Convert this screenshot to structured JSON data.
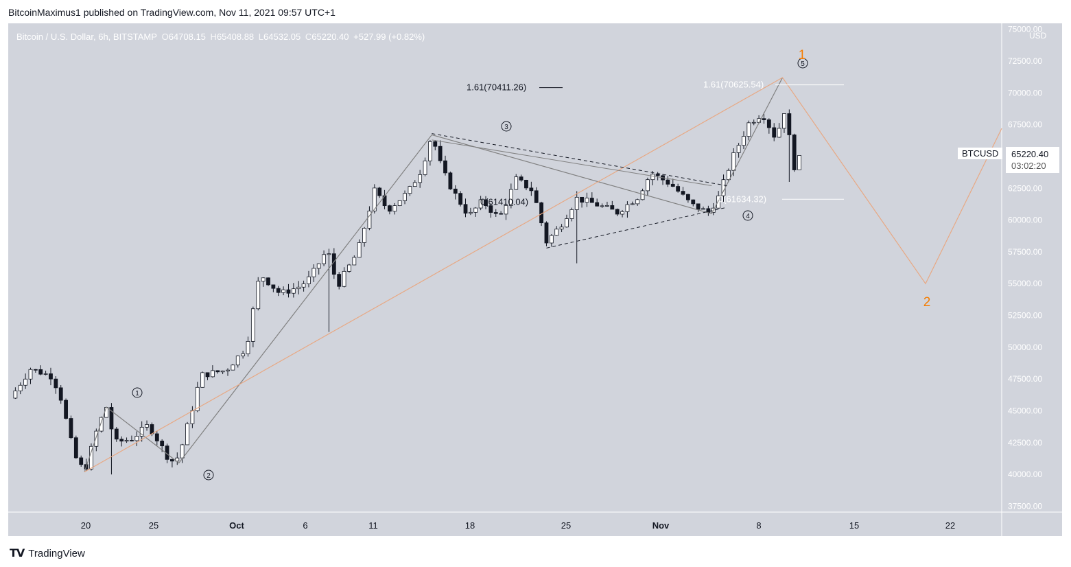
{
  "header": {
    "publisher_line": "BitcoinMaximus1 published on TradingView.com, Nov 11, 2021 09:57 UTC+1"
  },
  "legend": {
    "symbol": "Bitcoin / U.S. Dollar, 6h, BITSTAMP",
    "o_key": "O",
    "o_val": "64708.15",
    "h_key": "H",
    "h_val": "65408.88",
    "l_key": "L",
    "l_val": "64532.05",
    "c_key": "C",
    "c_val": "65220.40",
    "change": "+527.99 (+0.82%)"
  },
  "price_tag": {
    "label": "BTCUSD",
    "price": "65220.40",
    "countdown": "03:02:20"
  },
  "footer": {
    "brand": "TradingView"
  },
  "colors": {
    "background": "#d1d4dc",
    "up_candle": "#ffffff",
    "down_candle": "#131722",
    "orange": "#f57c00",
    "wave_line": "#808080"
  },
  "chart_data": {
    "type": "candlestick",
    "currency_label": "USD",
    "x_axis_labels": [
      "20",
      "25",
      "Oct",
      "6",
      "11",
      "18",
      "25",
      "Nov",
      "8",
      "15",
      "22"
    ],
    "y_axis_labels": [
      "37500.00",
      "40000.00",
      "42500.00",
      "45000.00",
      "47500.00",
      "50000.00",
      "52500.00",
      "55000.00",
      "57500.00",
      "60000.00",
      "62500.00",
      "65000.00",
      "67500.00",
      "70000.00",
      "72500.00",
      "75000.00"
    ],
    "ylim": [
      37500,
      75000
    ],
    "key_prices": [
      46000,
      48300,
      47500,
      40200,
      45300,
      40900,
      47800,
      54500,
      57500,
      61500,
      66700,
      60300,
      63000,
      58000,
      62000,
      60500,
      68500,
      66000,
      69000,
      63000,
      65220
    ],
    "wave_labels": [
      {
        "label": "1",
        "price": 46000
      },
      {
        "label": "2",
        "price": 40900
      },
      {
        "label": "3",
        "price": 66700
      },
      {
        "label": "4",
        "price": 60500
      },
      {
        "label": "5",
        "price": 71200
      }
    ],
    "major_wave_labels": [
      {
        "label": "1",
        "price": 71200
      },
      {
        "label": "2",
        "price": 55000
      }
    ],
    "fib_annotations": [
      {
        "label": "1.61(70411.26)",
        "price": 70411.26
      },
      {
        "label": "1.61(70625.54)",
        "price": 70625.54
      },
      {
        "label": "0(61410.04)",
        "price": 61410.04
      },
      {
        "label": "0(61634.32)",
        "price": 61634.32
      }
    ],
    "last_price": 65220.4
  }
}
